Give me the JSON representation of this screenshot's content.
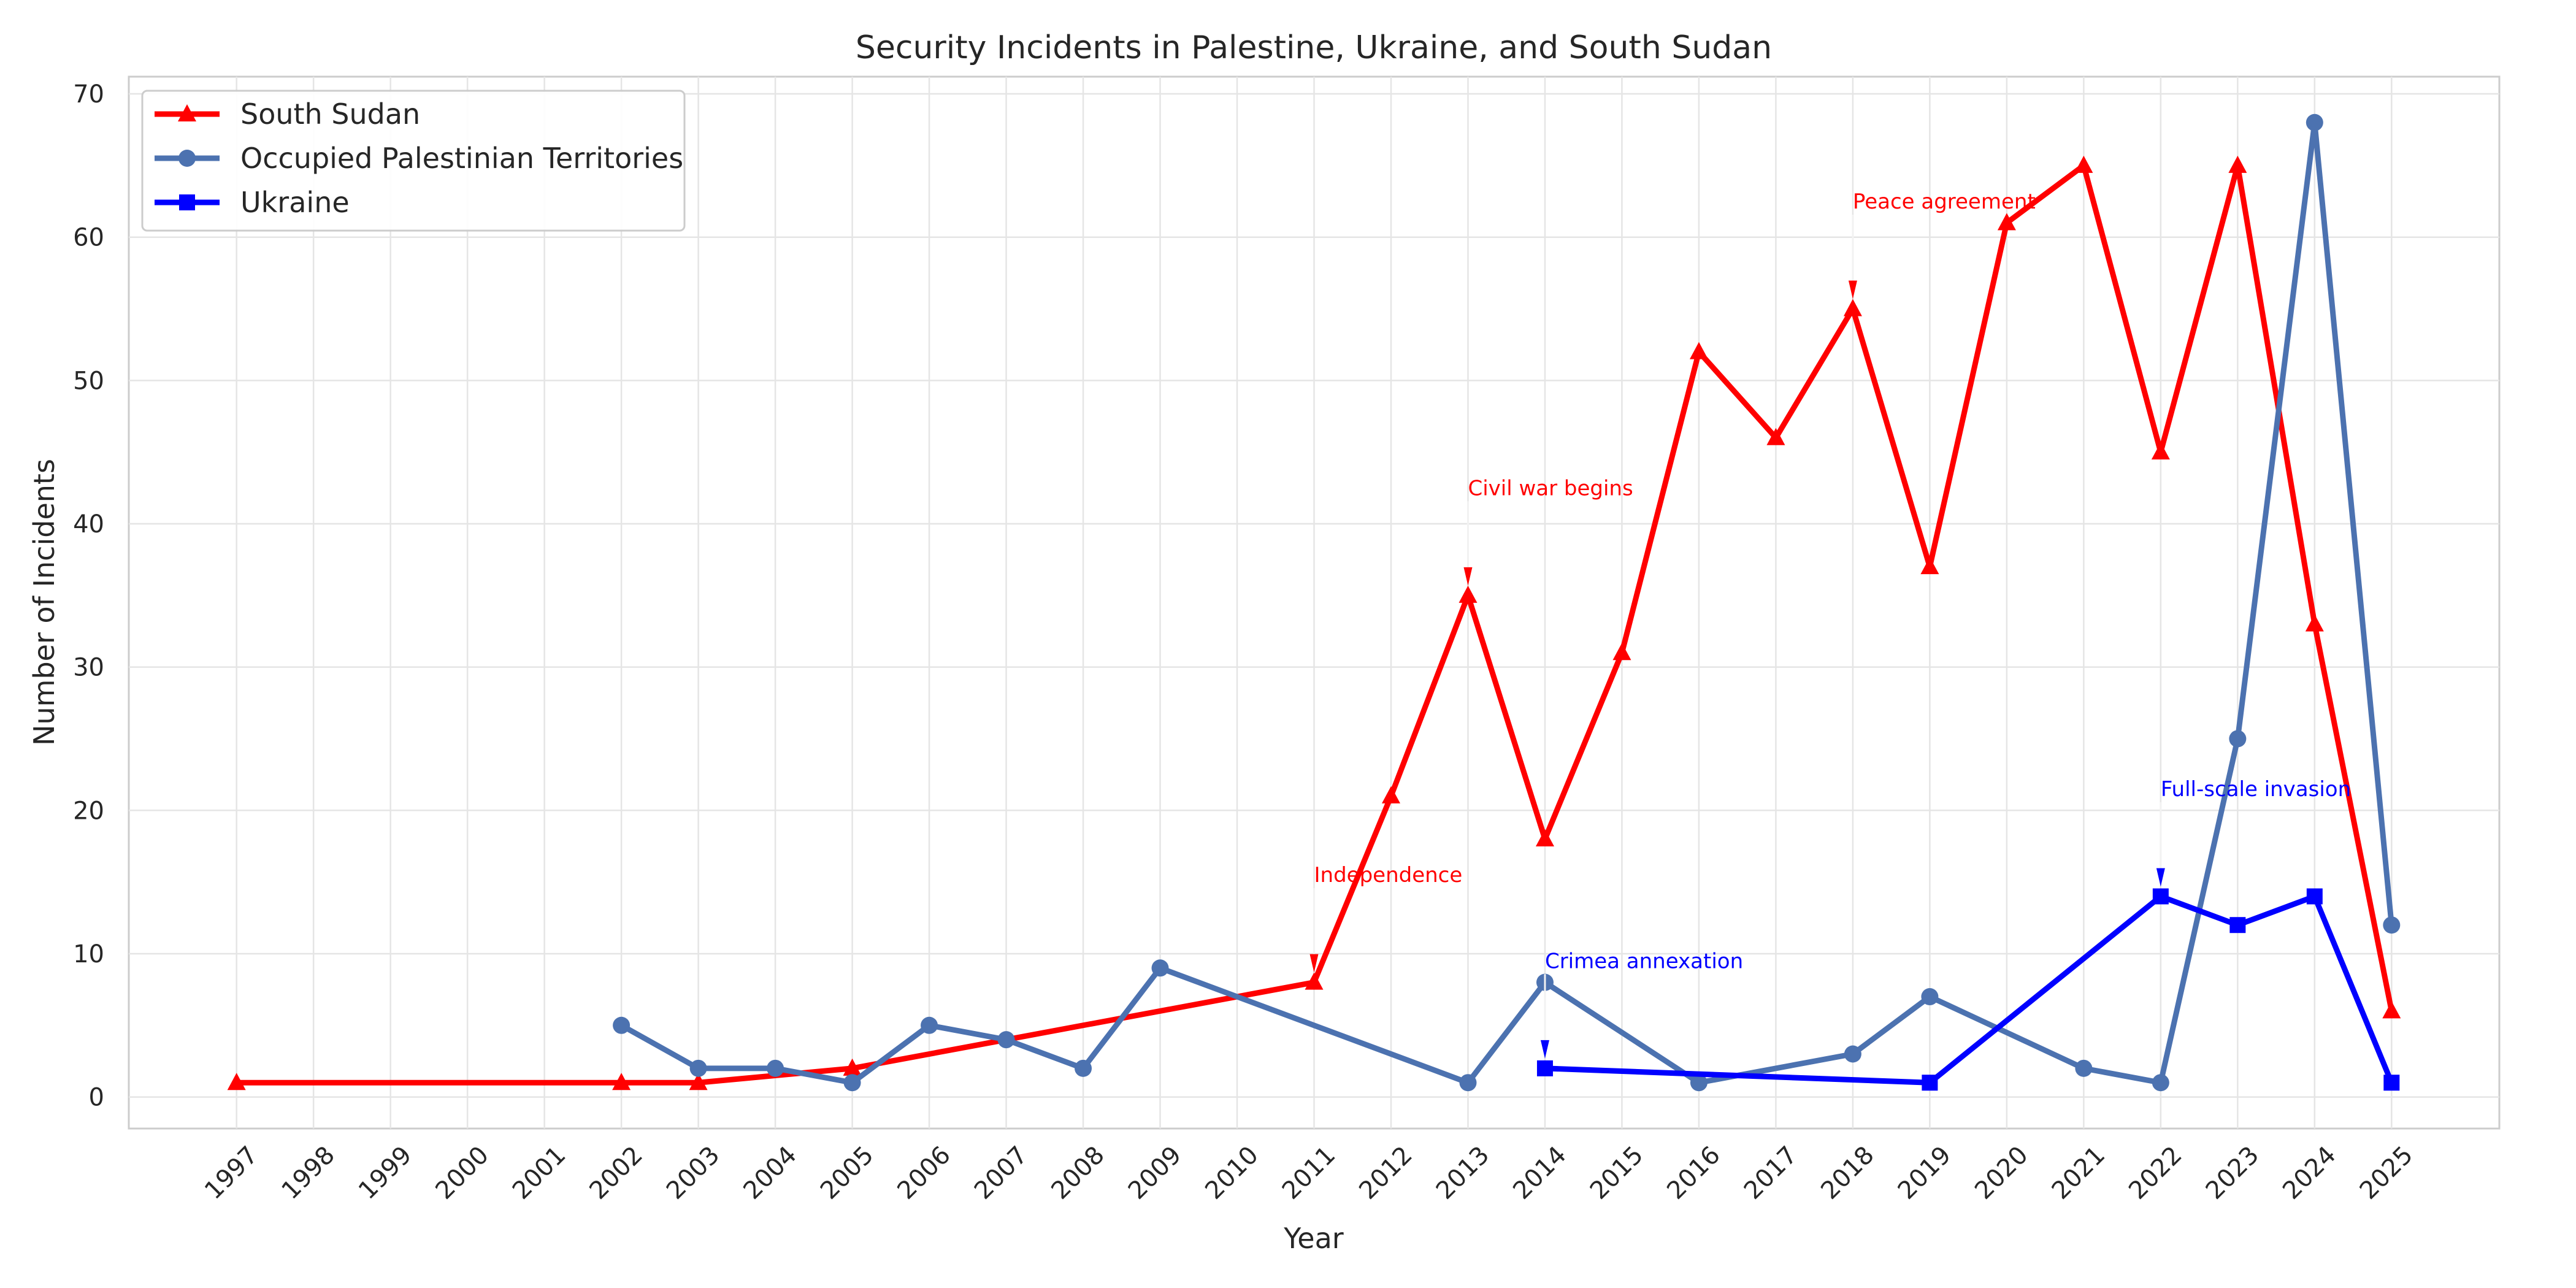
{
  "chart_data": {
    "type": "line",
    "title": "Security Incidents in Palestine, Ukraine, and South Sudan",
    "xlabel": "Year",
    "ylabel": "Number of Incidents",
    "x_ticks": [
      1997,
      1998,
      1999,
      2000,
      2001,
      2002,
      2003,
      2004,
      2005,
      2006,
      2007,
      2008,
      2009,
      2010,
      2011,
      2012,
      2013,
      2014,
      2015,
      2016,
      2017,
      2018,
      2019,
      2020,
      2021,
      2022,
      2023,
      2024,
      2025
    ],
    "xlim": [
      1995.6,
      2026.4
    ],
    "ylim": [
      -2.2,
      71.2
    ],
    "y_ticks": [
      0,
      10,
      20,
      30,
      40,
      50,
      60,
      70
    ],
    "grid": true,
    "legend_position": "top-left",
    "series": [
      {
        "name": "South Sudan",
        "color": "#ff0000",
        "marker": "triangle",
        "x": [
          1997,
          2002,
          2003,
          2005,
          2011,
          2012,
          2013,
          2014,
          2015,
          2016,
          2017,
          2018,
          2019,
          2020,
          2021,
          2022,
          2023,
          2024,
          2025
        ],
        "y": [
          1,
          1,
          1,
          2,
          8,
          21,
          35,
          18,
          31,
          52,
          46,
          55,
          37,
          61,
          65,
          45,
          65,
          33,
          6
        ]
      },
      {
        "name": "Occupied Palestinian Territories",
        "color": "#4c72b0",
        "marker": "circle",
        "x": [
          2002,
          2003,
          2004,
          2005,
          2006,
          2007,
          2008,
          2009,
          2013,
          2014,
          2016,
          2018,
          2019,
          2021,
          2022,
          2023,
          2024,
          2025
        ],
        "y": [
          5,
          2,
          2,
          1,
          5,
          4,
          2,
          9,
          1,
          8,
          1,
          3,
          7,
          2,
          1,
          25,
          68,
          12
        ]
      },
      {
        "name": "Ukraine",
        "color": "#0000ff",
        "marker": "square",
        "x": [
          2014,
          2019,
          2022,
          2023,
          2024,
          2025
        ],
        "y": [
          2,
          1,
          14,
          12,
          14,
          1
        ]
      }
    ],
    "annotations": [
      {
        "text": "Independence",
        "x": 2011,
        "y": 8,
        "text_y": 15,
        "color": "#ff0000"
      },
      {
        "text": "Civil war begins",
        "x": 2013,
        "y": 35,
        "text_y": 42,
        "color": "#ff0000"
      },
      {
        "text": "Peace agreement",
        "x": 2018,
        "y": 55,
        "text_y": 62,
        "color": "#ff0000"
      },
      {
        "text": "Crimea annexation",
        "x": 2014,
        "y": 2,
        "text_y": 9,
        "color": "#0000ff"
      },
      {
        "text": "Full-scale invasion",
        "x": 2022,
        "y": 14,
        "text_y": 21,
        "color": "#0000ff"
      }
    ]
  }
}
